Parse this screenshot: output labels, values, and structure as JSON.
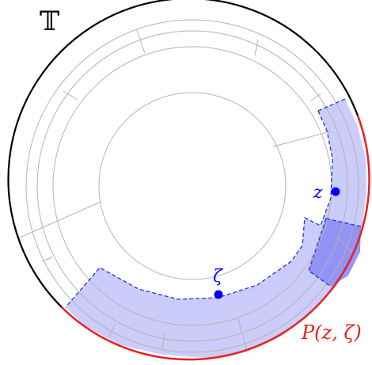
{
  "labels": {
    "torus": "𝕋",
    "point_z": "z",
    "point_zeta": "ζ",
    "path": "P(z, ζ)"
  },
  "colors": {
    "grid": "#b3b3b3",
    "boundary": "#000000",
    "highlight_boundary": "#e8201e",
    "region_fill": "#c9c9fa",
    "overlap_fill": "#8f8ff5",
    "point": "#0000ff",
    "label": "#0000ff",
    "path_label": "#e8201e"
  }
}
